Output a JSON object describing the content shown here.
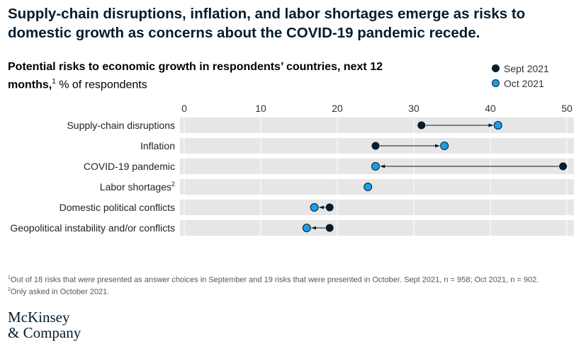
{
  "headline": "Supply-chain disruptions, inflation, and labor shortages emerge as risks to domestic growth as concerns about the COVID-19 pandemic recede.",
  "subtitle": {
    "bold_text": "Potential risks to economic growth in respondents’ countries, next 12 months,",
    "footnote_mark": "1",
    "unit_text": " % of respondents"
  },
  "footnotes": {
    "note1_mark": "1",
    "note1": "Out of 18 risks that were presented as answer choices in September and 19 risks that were presented in October. Sept 2021, n = 958; Oct 2021, n = 902.",
    "note2_mark": "2",
    "note2": "Only asked in October 2021."
  },
  "logo": {
    "line1": "McKinsey",
    "line2": "& Company"
  },
  "colors": {
    "sept": "#051c2c",
    "oct": "#1f9ce6",
    "band": "#e6e6e6",
    "grid": "#ffffff"
  },
  "chart_data": {
    "type": "dot",
    "title": "",
    "xlim": [
      0,
      50
    ],
    "xticks": [
      0,
      10,
      20,
      30,
      40,
      50
    ],
    "categories": [
      {
        "label": "Supply-chain disruptions",
        "sup": ""
      },
      {
        "label": "Inflation",
        "sup": ""
      },
      {
        "label": "COVID-19 pandemic",
        "sup": ""
      },
      {
        "label": "Labor shortages",
        "sup": "2"
      },
      {
        "label": "Domestic political conflicts",
        "sup": ""
      },
      {
        "label": "Geopolitical instability and/or conflicts",
        "sup": ""
      }
    ],
    "series": [
      {
        "name": "Sept 2021",
        "values": [
          31,
          25,
          49.5,
          null,
          19,
          19
        ]
      },
      {
        "name": "Oct 2021",
        "values": [
          41,
          34,
          25,
          24,
          17,
          16
        ]
      }
    ],
    "legend_position": "top-right",
    "grid": true
  }
}
